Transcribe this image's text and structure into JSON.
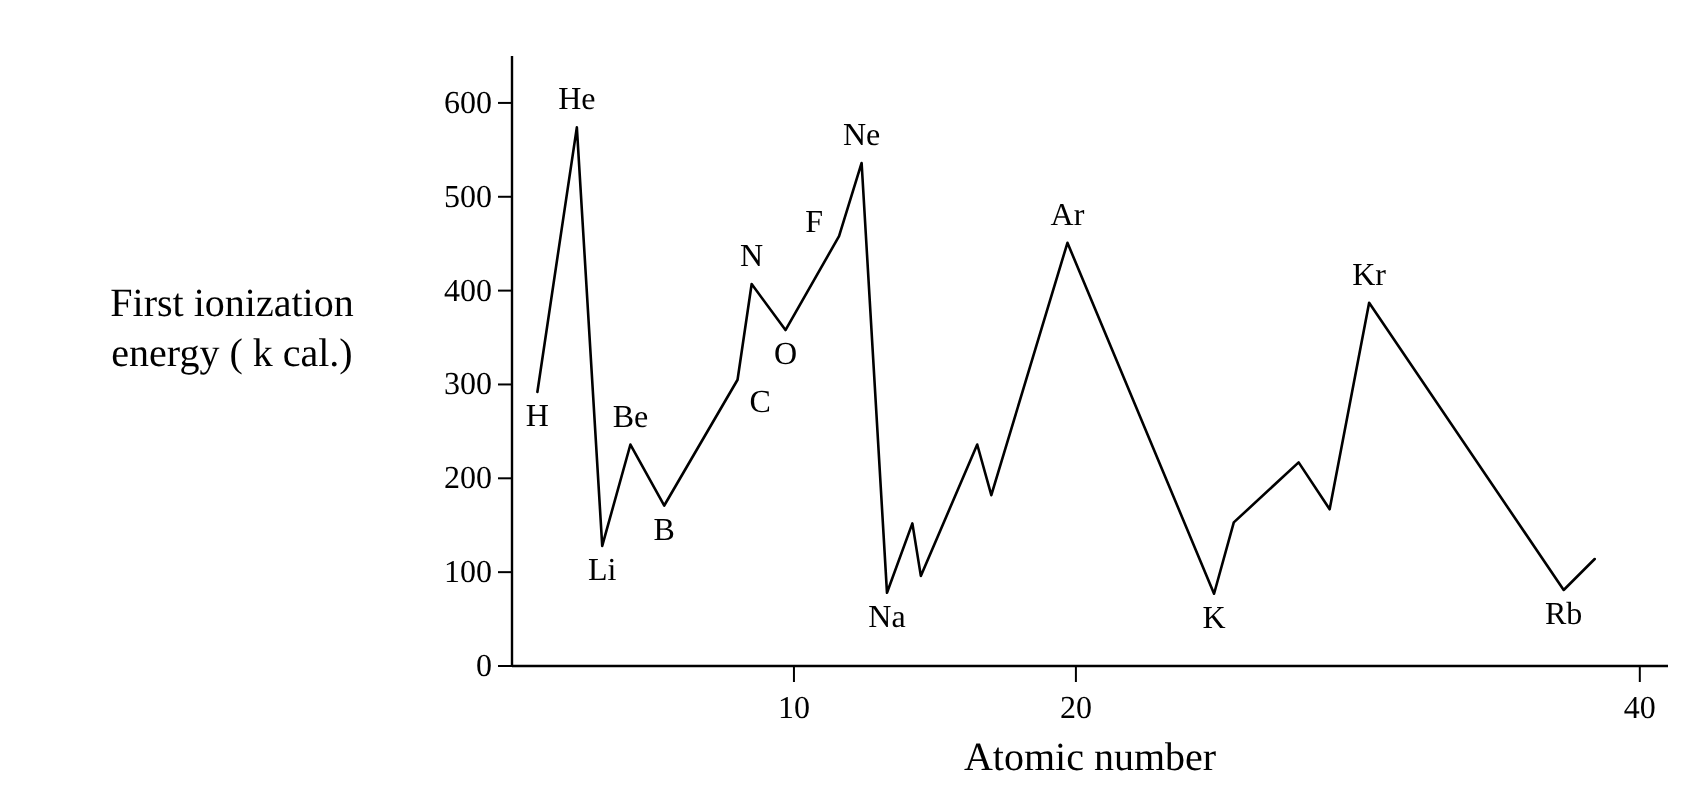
{
  "chart_data": {
    "type": "line",
    "xlabel": "Atomic number",
    "ylabel": "First ionization energy ( k cal.)",
    "x": [
      0.9,
      2.3,
      3.2,
      4.2,
      5.4,
      8.0,
      8.5,
      9.7,
      11.6,
      12.4,
      13.3,
      14.2,
      14.5,
      16.5,
      17.0,
      19.7,
      24.9,
      25.6,
      27.9,
      29.0,
      30.4,
      37.3,
      38.4
    ],
    "series": [
      {
        "color": "#000000",
        "values": [
          292,
          574,
          128,
          236,
          171,
          305,
          407,
          358,
          458,
          536,
          78,
          152,
          96,
          236,
          182,
          451,
          77,
          153,
          217,
          167,
          387,
          81,
          114
        ]
      }
    ],
    "xlim": [
      0,
      41
    ],
    "xticks": [
      10,
      20,
      40
    ],
    "ylim": [
      0,
      650
    ],
    "yticks": [
      0,
      100,
      200,
      300,
      400,
      500,
      600
    ],
    "grid": false,
    "marker": "none",
    "line_style": "solid",
    "annotations": [
      {
        "text": "H",
        "x": 0.9,
        "y": 292
      },
      {
        "text": "He",
        "x": 2.3,
        "y": 574
      },
      {
        "text": "Li",
        "x": 3.2,
        "y": 128
      },
      {
        "text": "Be",
        "x": 4.2,
        "y": 236
      },
      {
        "text": "B",
        "x": 5.4,
        "y": 171
      },
      {
        "text": "C",
        "x": 8.0,
        "y": 305
      },
      {
        "text": "N",
        "x": 8.5,
        "y": 407
      },
      {
        "text": "O",
        "x": 9.7,
        "y": 358
      },
      {
        "text": "F",
        "x": 11.6,
        "y": 458
      },
      {
        "text": "Ne",
        "x": 12.4,
        "y": 536
      },
      {
        "text": "Na",
        "x": 13.3,
        "y": 78
      },
      {
        "text": "Ar",
        "x": 19.7,
        "y": 451
      },
      {
        "text": "K",
        "x": 24.9,
        "y": 77
      },
      {
        "text": "Kr",
        "x": 30.4,
        "y": 387
      },
      {
        "text": "Rb",
        "x": 37.3,
        "y": 81
      }
    ]
  }
}
